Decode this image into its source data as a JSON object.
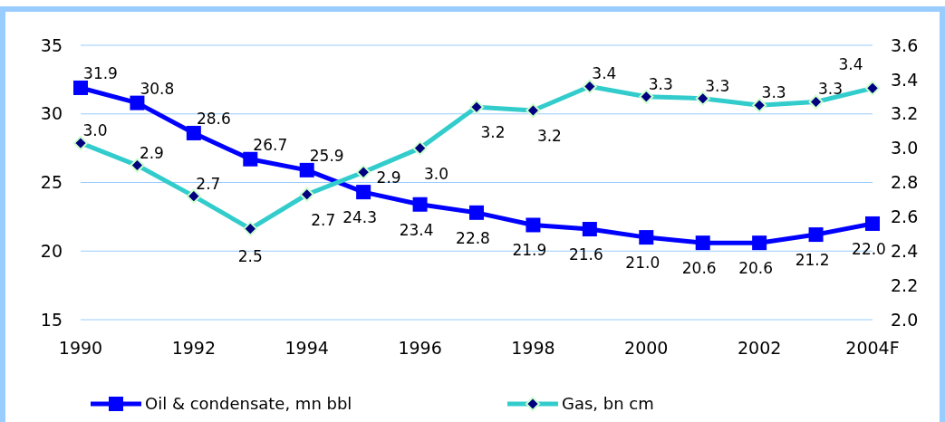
{
  "chart_data": {
    "type": "line",
    "categories": [
      "1990",
      null,
      "1992",
      null,
      "1994",
      null,
      "1996",
      null,
      "1998",
      null,
      "2000",
      null,
      "2002",
      null,
      "2004F"
    ],
    "series": [
      {
        "name": "Oil & condensate, mn bbl",
        "color": "#0000ff",
        "marker": "square",
        "values": [
          31.9,
          30.8,
          28.6,
          26.7,
          25.9,
          24.3,
          23.4,
          22.8,
          21.9,
          21.6,
          21.0,
          20.6,
          20.6,
          21.2,
          22.0
        ],
        "value_labels": [
          "31.9",
          "30.8",
          "28.6",
          "26.7",
          "25.9",
          "24.3",
          "23.4",
          "22.8",
          "21.9",
          "21.6",
          "21.0",
          "20.6",
          "20.6",
          "21.2",
          "22.0"
        ]
      },
      {
        "name": "Gas, bn cm",
        "color": "#33cccc",
        "marker": "diamond",
        "axis": "y2",
        "values": [
          3.03,
          2.9,
          2.72,
          2.53,
          2.73,
          2.86,
          3.0,
          3.24,
          3.22,
          3.36,
          3.3,
          3.29,
          3.25,
          3.27,
          3.35
        ],
        "value_labels": [
          "3.0",
          "2.9",
          "2.7",
          "2.5",
          "2.7",
          "2.9",
          "3.0",
          "3.2",
          "3.2",
          "3.4",
          "3.3",
          "3.3",
          "3.3",
          "3.3",
          "3.4"
        ]
      }
    ],
    "ylim": [
      15,
      35
    ],
    "yticks": [
      15,
      20,
      25,
      30,
      35
    ],
    "y2lim": [
      2.0,
      3.6
    ],
    "y2ticks": [
      {
        "value": 2.0,
        "label": "2.0"
      },
      {
        "value": 2.2,
        "label": "2.2"
      },
      {
        "value": 2.4,
        "label": "2.4"
      },
      {
        "value": 2.6,
        "label": "2.6"
      },
      {
        "value": 2.8,
        "label": "2.8"
      },
      {
        "value": 3.0,
        "label": "3.0"
      },
      {
        "value": 3.2,
        "label": "3.2"
      },
      {
        "value": 3.4,
        "label": "3.4"
      },
      {
        "value": 3.6,
        "label": "3.6"
      }
    ],
    "grid": "y",
    "legend": "bottom",
    "line_style": "solid"
  }
}
